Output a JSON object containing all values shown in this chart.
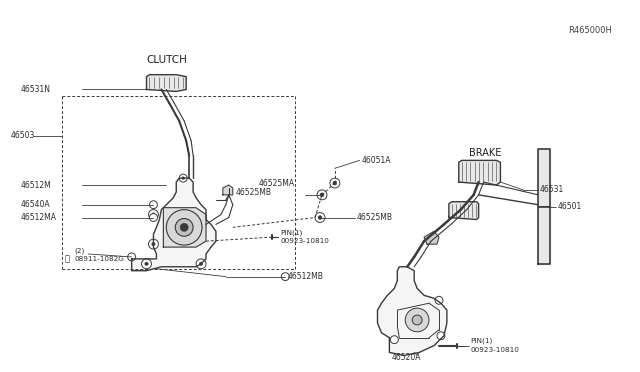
{
  "bg_color": "#ffffff",
  "line_color": "#3a3a3a",
  "text_color": "#2a2a2a",
  "figsize": [
    6.4,
    3.72
  ],
  "dpi": 100,
  "diagram_ref": "R465000H",
  "clutch_label": "CLUTCH",
  "brake_label": "BRAKE"
}
